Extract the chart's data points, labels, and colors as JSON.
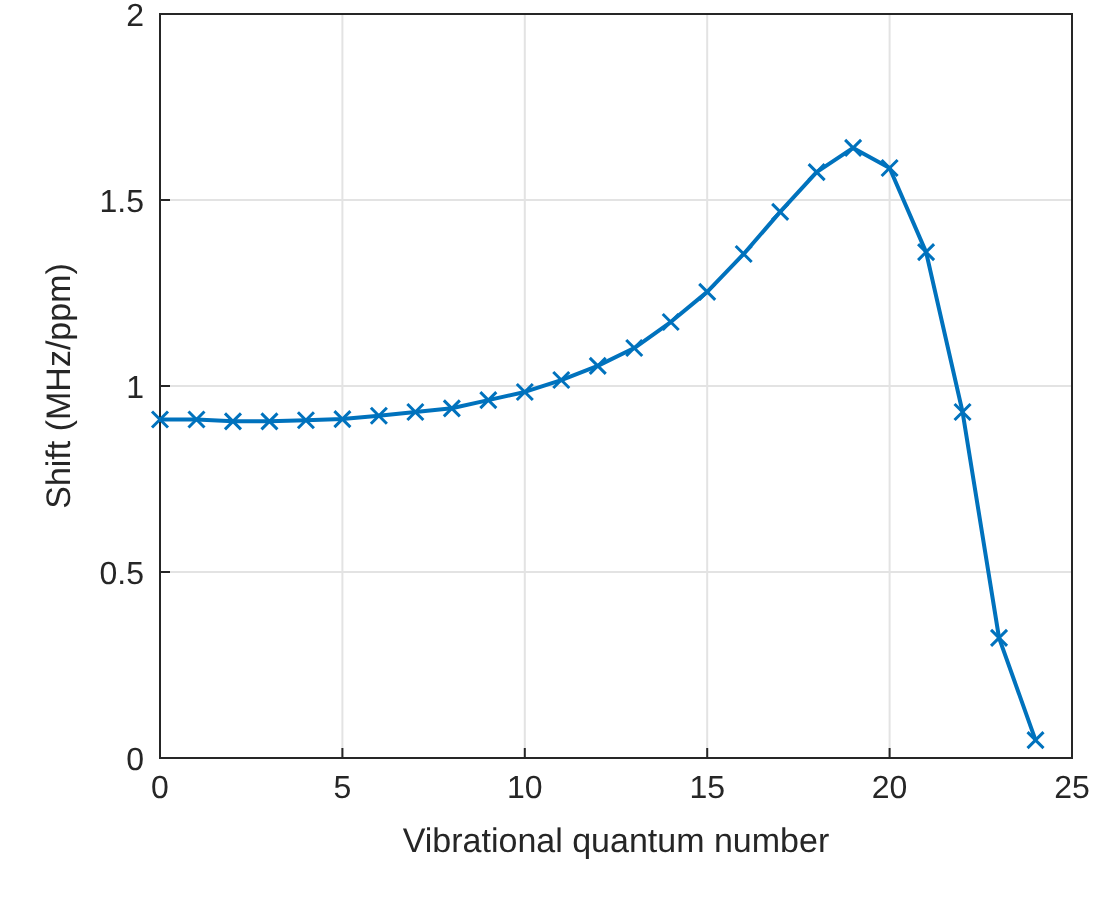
{
  "chart_data": {
    "type": "line",
    "xlabel": "Vibrational quantum number",
    "ylabel": "Shift (MHz/ppm)",
    "x": [
      0,
      1,
      2,
      3,
      4,
      5,
      6,
      7,
      8,
      9,
      10,
      11,
      12,
      13,
      14,
      15,
      16,
      17,
      18,
      19,
      20,
      21,
      22,
      23,
      24
    ],
    "series": [
      {
        "color": "#0072bd",
        "values": [
          0.91,
          0.91,
          0.905,
          0.905,
          0.908,
          0.911,
          0.92,
          0.93,
          0.94,
          0.962,
          0.984,
          1.016,
          1.054,
          1.102,
          1.172,
          1.253,
          1.355,
          1.468,
          1.575,
          1.64,
          1.586,
          1.36,
          0.93,
          0.323,
          0.048
        ]
      }
    ],
    "xlim": [
      0,
      25
    ],
    "xticks": [
      0,
      5,
      10,
      15,
      20,
      25
    ],
    "ylim": [
      0,
      2
    ],
    "yticks": [
      0,
      0.5,
      1,
      1.5,
      2
    ],
    "grid": true,
    "marker": "cross",
    "line_style": "solid"
  }
}
